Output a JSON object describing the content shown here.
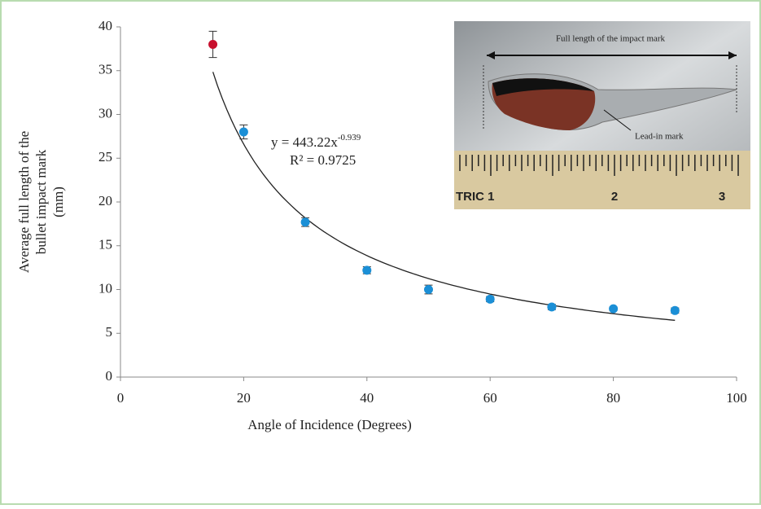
{
  "chart_data": {
    "type": "scatter",
    "xlabel": "Angle of Incidence (Degrees)",
    "ylabel": [
      "Average full length of the",
      "bullet impact mark",
      "(mm)"
    ],
    "xlim": [
      0,
      100
    ],
    "xticks": [
      0,
      20,
      40,
      60,
      80,
      100
    ],
    "ylim": [
      0,
      40
    ],
    "yticks": [
      0,
      5,
      10,
      15,
      20,
      25,
      30,
      35,
      40
    ],
    "series": [
      {
        "color": "#c8102e",
        "x": [
          15
        ],
        "values": [
          38
        ],
        "errors": [
          1.5
        ]
      },
      {
        "color": "#1b8fd6",
        "x": [
          20,
          30,
          40,
          50,
          60,
          70,
          80,
          90
        ],
        "values": [
          28,
          17.7,
          12.2,
          10,
          8.9,
          8,
          7.8,
          7.6
        ],
        "errors": [
          0.8,
          0.5,
          0.4,
          0.5,
          0.3,
          0.3,
          0.2,
          0.3
        ]
      }
    ],
    "trendline": {
      "coefficient": 443.22,
      "exponent": -0.939,
      "equation": "y = 443.22x",
      "r2": "R² = 0.9725",
      "color": "#222222"
    },
    "inset": {
      "top_label": "Full length of the impact mark",
      "lead_label": "Lead-in mark",
      "ruler_labels": [
        "TRIC 1",
        "2",
        "3"
      ]
    }
  }
}
